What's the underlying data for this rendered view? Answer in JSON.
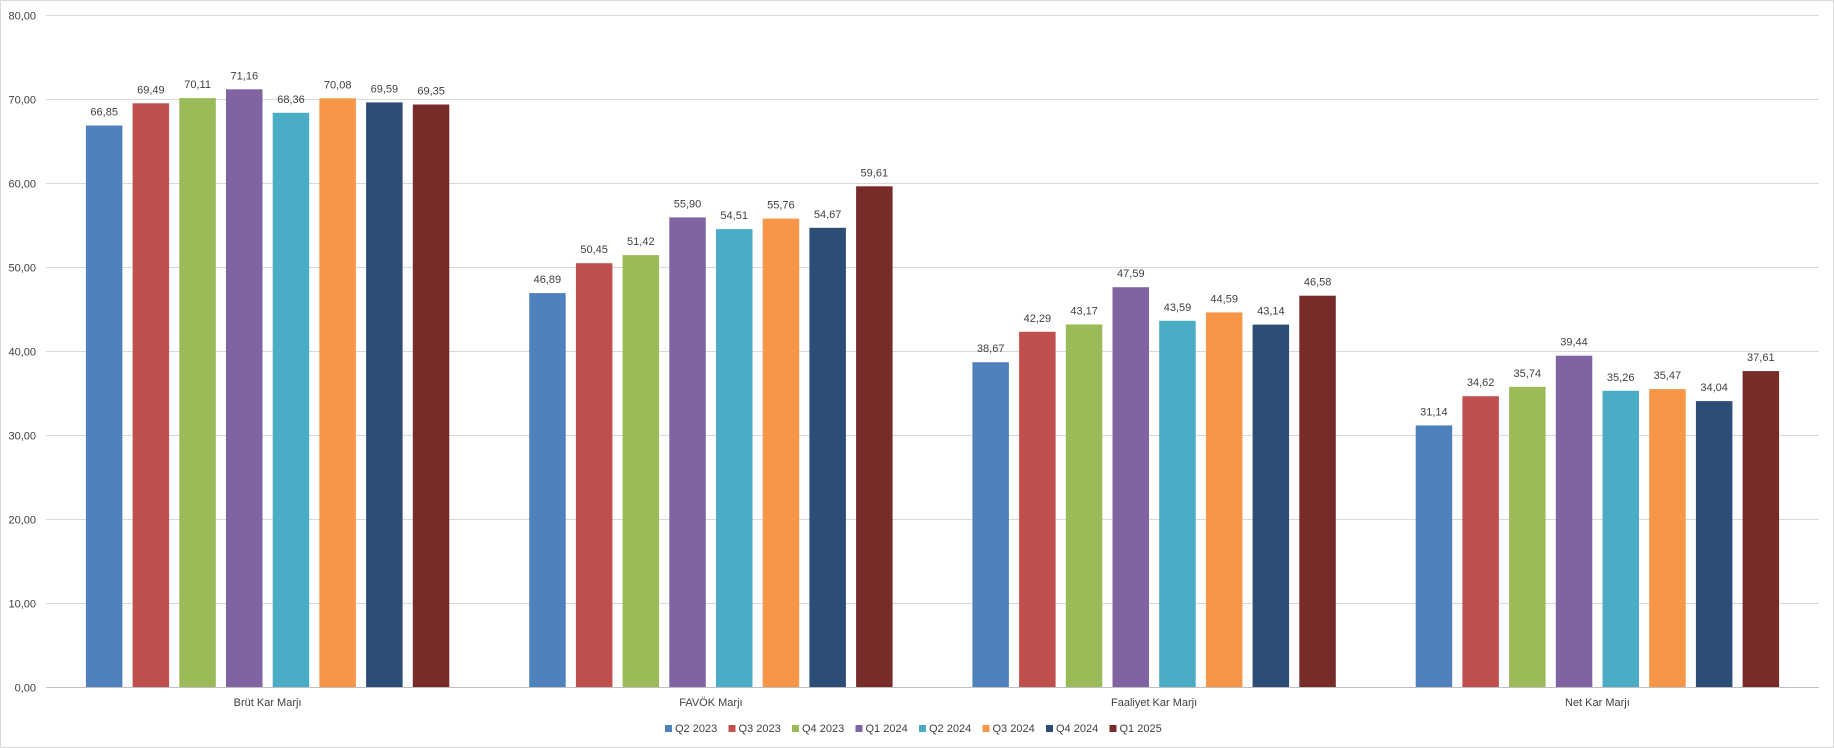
{
  "chart_data": {
    "type": "bar",
    "title": "",
    "xlabel": "",
    "ylabel": "",
    "ylim": [
      0,
      80
    ],
    "y_ticks": [
      "0,00",
      "10,00",
      "20,00",
      "30,00",
      "40,00",
      "50,00",
      "60,00",
      "70,00",
      "80,00"
    ],
    "grid": true,
    "legend_position": "bottom",
    "categories": [
      "Brüt Kar Marjı",
      "FAVÖK Marjı",
      "Faaliyet Kar Marjı",
      "Net Kar Marjı"
    ],
    "series": [
      {
        "name": "Q2 2023",
        "color": "#4f81bd",
        "values": [
          66.85,
          46.89,
          38.67,
          31.14
        ],
        "labels": [
          "66,85",
          "46,89",
          "38,67",
          "31,14"
        ]
      },
      {
        "name": "Q3 2023",
        "color": "#c0504d",
        "values": [
          69.49,
          50.45,
          42.29,
          34.62
        ],
        "labels": [
          "69,49",
          "50,45",
          "42,29",
          "34,62"
        ]
      },
      {
        "name": "Q4 2023",
        "color": "#9bbb59",
        "values": [
          70.11,
          51.42,
          43.17,
          35.74
        ],
        "labels": [
          "70,11",
          "51,42",
          "43,17",
          "35,74"
        ]
      },
      {
        "name": "Q1 2024",
        "color": "#8064a2",
        "values": [
          71.16,
          55.9,
          47.59,
          39.44
        ],
        "labels": [
          "71,16",
          "55,90",
          "47,59",
          "39,44"
        ]
      },
      {
        "name": "Q2 2024",
        "color": "#4bacc6",
        "values": [
          68.36,
          54.51,
          43.59,
          35.26
        ],
        "labels": [
          "68,36",
          "54,51",
          "43,59",
          "35,26"
        ]
      },
      {
        "name": "Q3 2024",
        "color": "#f79646",
        "values": [
          70.08,
          55.76,
          44.59,
          35.47
        ],
        "labels": [
          "70,08",
          "55,76",
          "44,59",
          "35,47"
        ]
      },
      {
        "name": "Q4 2024",
        "color": "#2c4d75",
        "values": [
          69.59,
          54.67,
          43.14,
          34.04
        ],
        "labels": [
          "69,59",
          "54,67",
          "43,14",
          "34,04"
        ]
      },
      {
        "name": "Q1 2025",
        "color": "#772c2a",
        "values": [
          69.35,
          59.61,
          46.58,
          37.61
        ],
        "labels": [
          "69,35",
          "59,61",
          "46,58",
          "37,61"
        ]
      }
    ]
  }
}
